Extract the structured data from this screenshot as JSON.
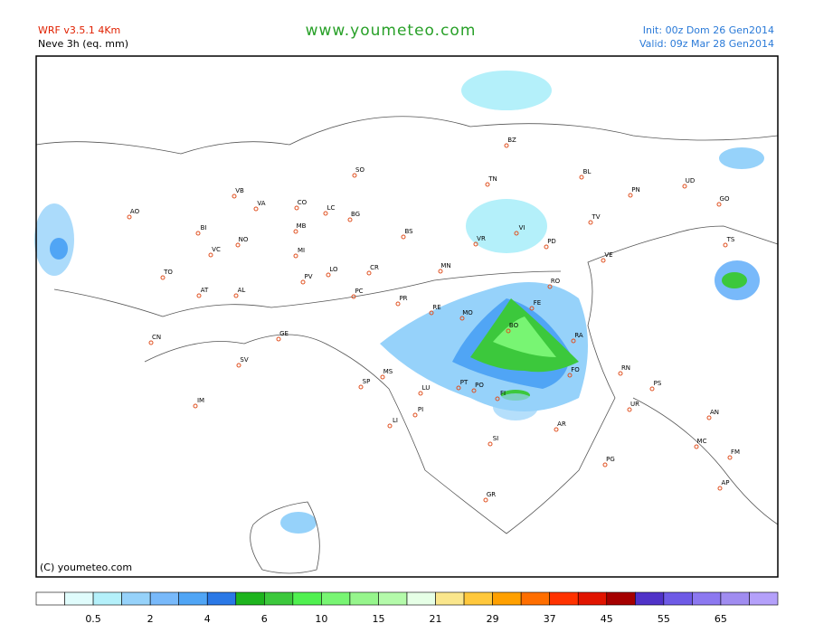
{
  "header": {
    "model": "WRF v3.5.1 4Km",
    "field": "Neve 3h (eq. mm)",
    "site": "www.youmeteo.com",
    "init": "Init: 00z Dom 26 Gen2014",
    "valid": "Valid: 09z Mar  28 Gen2014"
  },
  "map": {
    "copyright": "(C) youmeteo.com",
    "cities": [
      "BZ",
      "BL",
      "UD",
      "PN",
      "GO",
      "TN",
      "VB",
      "SO",
      "CO",
      "VA",
      "LC",
      "BG",
      "AO",
      "BI",
      "NO",
      "MB",
      "VI",
      "TV",
      "BS",
      "VR",
      "PD",
      "TS",
      "VC",
      "MI",
      "VE",
      "MN",
      "CR",
      "LO",
      "PV",
      "TO",
      "AT",
      "AL",
      "PC",
      "RO",
      "FE",
      "PR",
      "RE",
      "MO",
      "BO",
      "RA",
      "GE",
      "CN",
      "FO",
      "RN",
      "SV",
      "MS",
      "SP",
      "PS",
      "PT",
      "PO",
      "LU",
      "FI",
      "UR",
      "PI",
      "AN",
      "LI",
      "AR",
      "IM",
      "SI",
      "MC",
      "FM",
      "PG",
      "GR",
      "AP"
    ]
  },
  "colorbar": {
    "colors": [
      "#ffffff",
      "#e0fcfc",
      "#b4f0fa",
      "#96d2fa",
      "#78b9fa",
      "#50a5f5",
      "#2a78e6",
      "#1eb41e",
      "#3cc83c",
      "#50f050",
      "#78f573",
      "#96f58c",
      "#b4faaa",
      "#e6ffe6",
      "#fae68c",
      "#ffc83c",
      "#ffa000",
      "#ff6e00",
      "#ff3200",
      "#e11400",
      "#a50000",
      "#5032c8",
      "#6e5ae6",
      "#8c78f0",
      "#a08cf0",
      "#b4a0fa"
    ],
    "labels": [
      0.5,
      2,
      4,
      6,
      10,
      15,
      21,
      29,
      37,
      45,
      55,
      65
    ]
  }
}
